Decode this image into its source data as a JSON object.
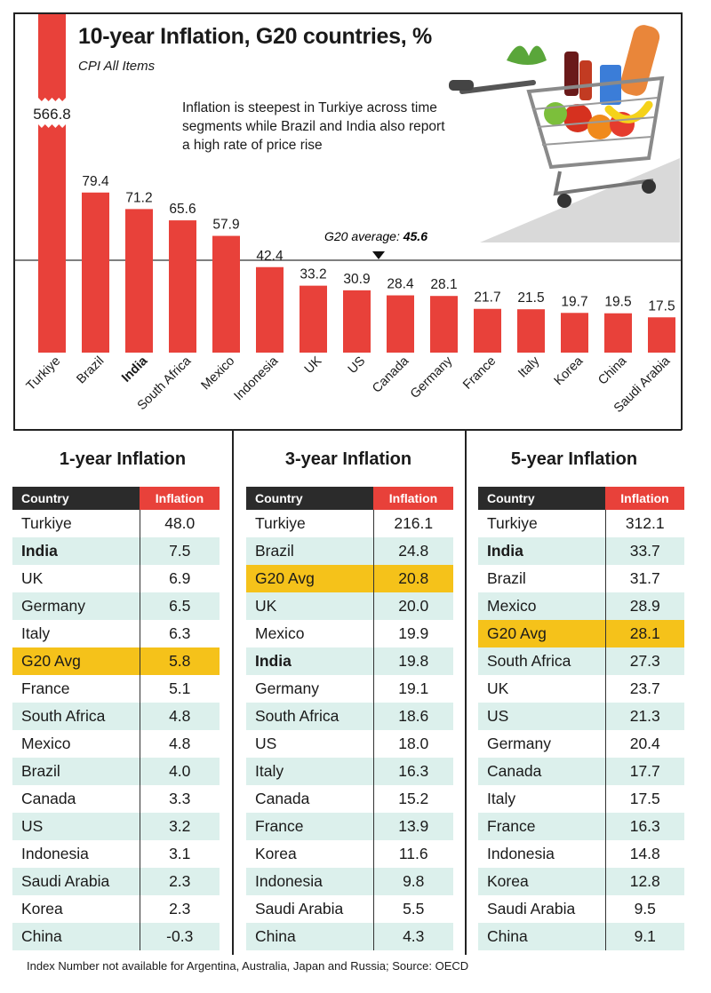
{
  "title": "10-year Inflation, G20 countries, %",
  "subtitle": "CPI All Items",
  "annotation": "Inflation is steepest in Turkiye across time segments while Brazil and India also report a high rate of price rise",
  "footnote": "Index Number not available for Argentina, Australia, Japan and Russia; Source: OECD",
  "colors": {
    "bar": "#e8413a",
    "g20_highlight": "#f5c21a",
    "row_alt": "#dcf0ec",
    "header_dark": "#2b2b2b"
  },
  "chart_data": {
    "type": "bar",
    "categories": [
      "Turkiye",
      "Brazil",
      "India",
      "South Africa",
      "Mexico",
      "Indonesia",
      "UK",
      "US",
      "Canada",
      "Germany",
      "France",
      "Italy",
      "Korea",
      "China",
      "Saudi Arabia"
    ],
    "values": [
      566.8,
      79.4,
      71.2,
      65.6,
      57.9,
      42.4,
      33.2,
      30.9,
      28.4,
      28.1,
      21.7,
      21.5,
      19.7,
      19.5,
      17.5
    ],
    "value_labels": [
      "566.8",
      "79.4",
      "71.2",
      "65.6",
      "57.9",
      "42.4",
      "33.2",
      "30.9",
      "28.4",
      "28.1",
      "21.7",
      "21.5",
      "19.7",
      "19.5",
      "17.5"
    ],
    "bold_category": "India",
    "axis_break": "Turkiye",
    "reference_line": {
      "label_prefix": "G20 average:",
      "label_value": "45.6",
      "value": 45.6
    }
  },
  "tables": [
    {
      "title": "1-year Inflation",
      "headers": [
        "Country",
        "Inflation"
      ],
      "rows": [
        {
          "country": "Turkiye",
          "value": "48.0"
        },
        {
          "country": "India",
          "value": "7.5",
          "bold": true
        },
        {
          "country": "UK",
          "value": "6.9"
        },
        {
          "country": "Germany",
          "value": "6.5"
        },
        {
          "country": "Italy",
          "value": "6.3"
        },
        {
          "country": "G20 Avg",
          "value": "5.8",
          "g20": true
        },
        {
          "country": "France",
          "value": "5.1"
        },
        {
          "country": "South Africa",
          "value": "4.8"
        },
        {
          "country": "Mexico",
          "value": "4.8"
        },
        {
          "country": "Brazil",
          "value": "4.0"
        },
        {
          "country": "Canada",
          "value": "3.3"
        },
        {
          "country": "US",
          "value": "3.2"
        },
        {
          "country": "Indonesia",
          "value": "3.1"
        },
        {
          "country": "Saudi Arabia",
          "value": "2.3"
        },
        {
          "country": "Korea",
          "value": "2.3"
        },
        {
          "country": "China",
          "value": "-0.3"
        }
      ]
    },
    {
      "title": "3-year Inflation",
      "headers": [
        "Country",
        "Inflation"
      ],
      "rows": [
        {
          "country": "Turkiye",
          "value": "216.1"
        },
        {
          "country": "Brazil",
          "value": "24.8"
        },
        {
          "country": "G20 Avg",
          "value": "20.8",
          "g20": true
        },
        {
          "country": "UK",
          "value": "20.0"
        },
        {
          "country": "Mexico",
          "value": "19.9"
        },
        {
          "country": "India",
          "value": "19.8",
          "bold": true
        },
        {
          "country": "Germany",
          "value": "19.1"
        },
        {
          "country": "South Africa",
          "value": "18.6"
        },
        {
          "country": "US",
          "value": "18.0"
        },
        {
          "country": "Italy",
          "value": "16.3"
        },
        {
          "country": "Canada",
          "value": "15.2"
        },
        {
          "country": "France",
          "value": "13.9"
        },
        {
          "country": "Korea",
          "value": "11.6"
        },
        {
          "country": "Indonesia",
          "value": "9.8"
        },
        {
          "country": "Saudi Arabia",
          "value": "5.5"
        },
        {
          "country": "China",
          "value": "4.3"
        }
      ]
    },
    {
      "title": "5-year Inflation",
      "headers": [
        "Country",
        "Inflation"
      ],
      "rows": [
        {
          "country": "Turkiye",
          "value": "312.1"
        },
        {
          "country": "India",
          "value": "33.7",
          "bold": true
        },
        {
          "country": "Brazil",
          "value": "31.7"
        },
        {
          "country": "Mexico",
          "value": "28.9"
        },
        {
          "country": "G20 Avg",
          "value": "28.1",
          "g20": true
        },
        {
          "country": "South Africa",
          "value": "27.3"
        },
        {
          "country": "UK",
          "value": "23.7"
        },
        {
          "country": "US",
          "value": "21.3"
        },
        {
          "country": "Germany",
          "value": "20.4"
        },
        {
          "country": "Canada",
          "value": "17.7"
        },
        {
          "country": "Italy",
          "value": "17.5"
        },
        {
          "country": "France",
          "value": "16.3"
        },
        {
          "country": "Indonesia",
          "value": "14.8"
        },
        {
          "country": "Korea",
          "value": "12.8"
        },
        {
          "country": "Saudi Arabia",
          "value": "9.5"
        },
        {
          "country": "China",
          "value": "9.1"
        }
      ]
    }
  ],
  "illustration": {
    "icon": "shopping-cart-with-groceries-icon"
  }
}
